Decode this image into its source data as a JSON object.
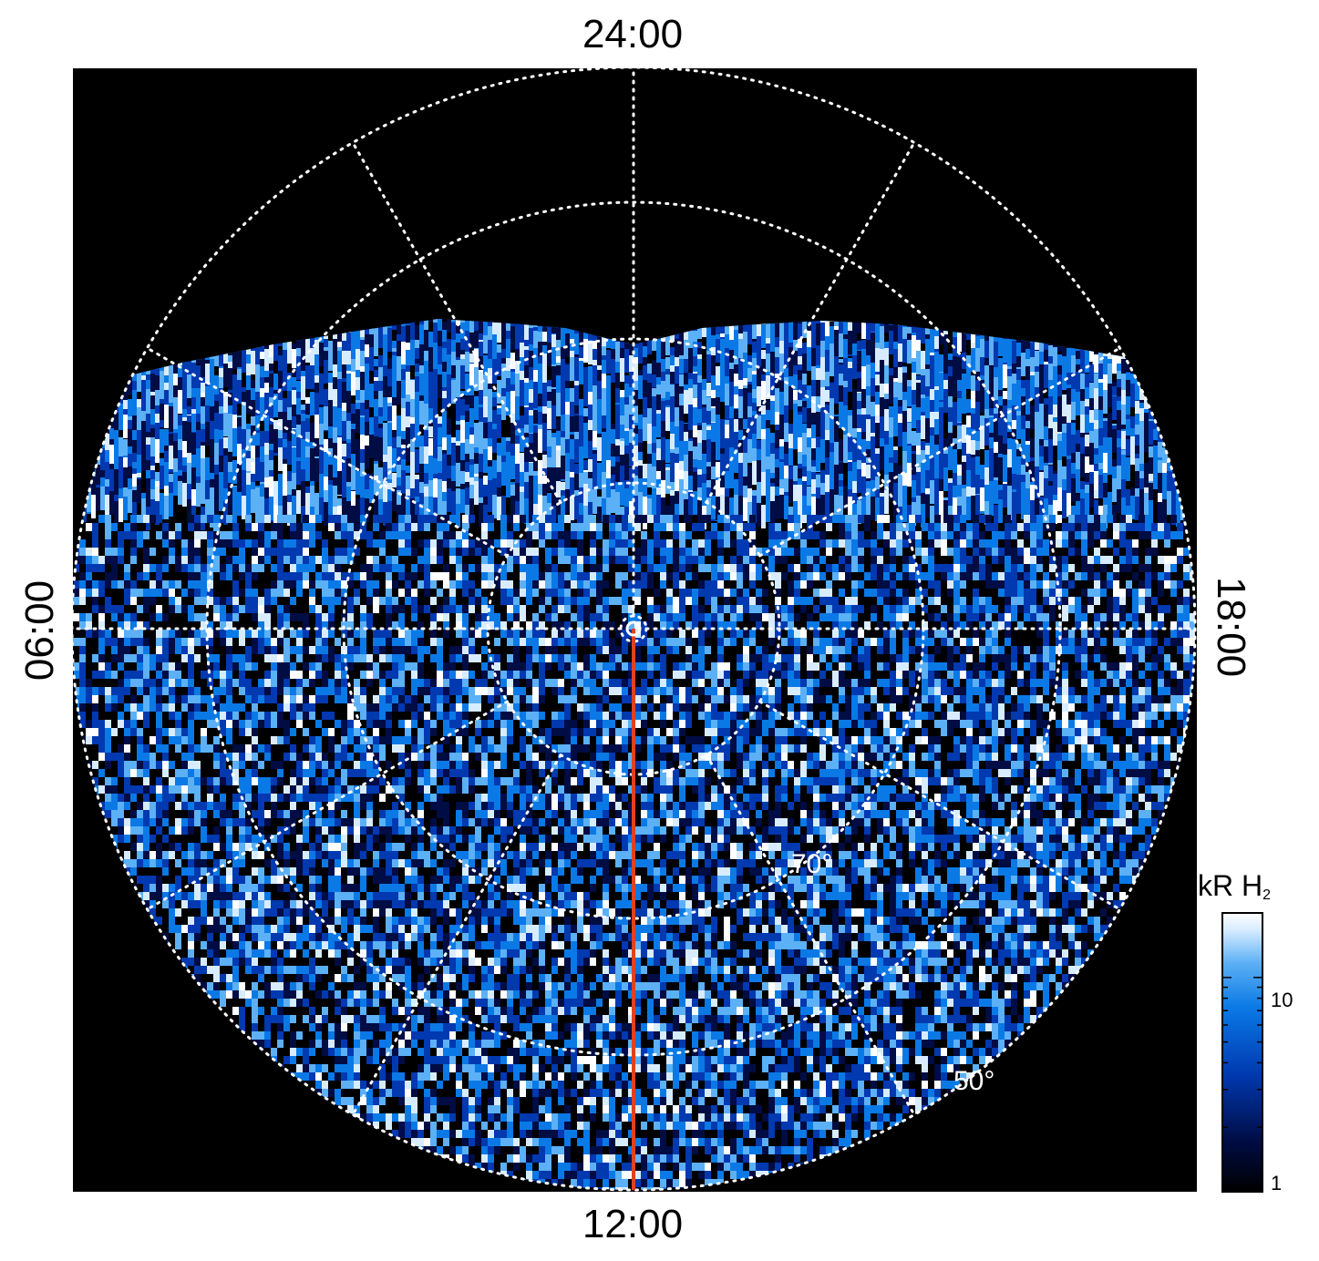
{
  "local_time_labels": {
    "top": "24:00",
    "bottom": "12:00",
    "left": "06:00",
    "right": "18:00"
  },
  "latitude_labels": [
    "70°",
    "50°"
  ],
  "colorbar": {
    "title_main": "kR H",
    "title_sub": "2",
    "scale": "log",
    "range": [
      1,
      20
    ],
    "ticks": [
      "10",
      "1"
    ],
    "colors": [
      "#000000",
      "#000c44",
      "#0039b0",
      "#0a79e6",
      "#5cb0f5",
      "#d8ecff",
      "#ffffff"
    ]
  },
  "meridian_line_color": "#e0421f",
  "grid_color": "#ffffff",
  "background_color": "#000000"
}
